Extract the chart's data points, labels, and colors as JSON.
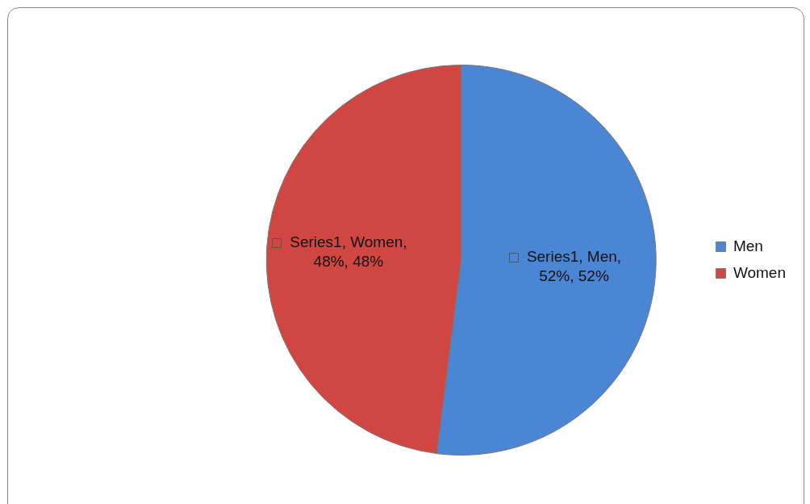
{
  "chart_data": {
    "type": "pie",
    "categories": [
      "Men",
      "Women"
    ],
    "values": [
      52,
      48
    ],
    "colors": [
      "#4a86d4",
      "#d04643"
    ],
    "value_labels": [
      "Series1, Men, 52%, 52%",
      "Series1, Women, 48%, 48%"
    ],
    "legend": "right"
  }
}
